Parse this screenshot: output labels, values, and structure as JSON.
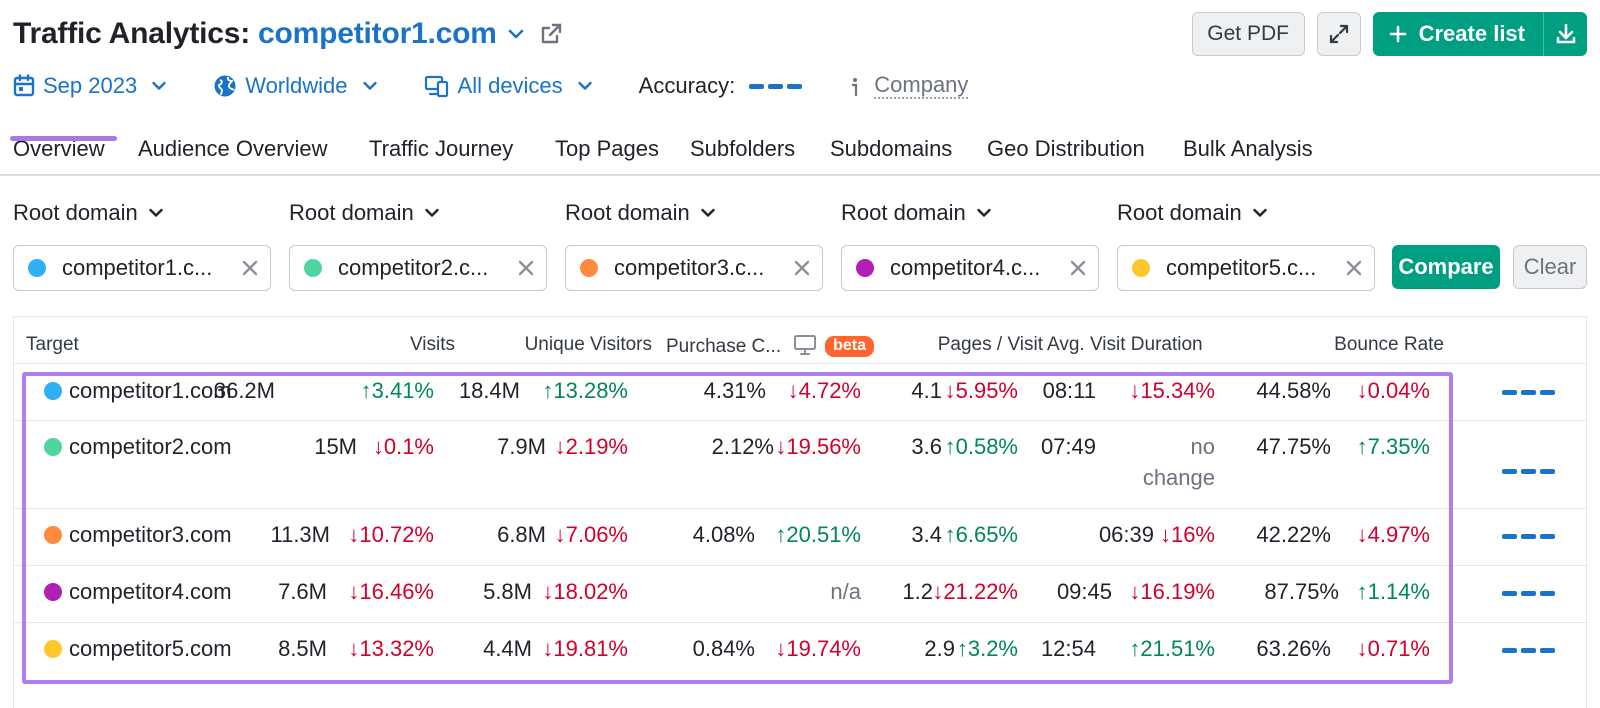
{
  "header": {
    "title": "Traffic Analytics:",
    "domain": "competitor1.com",
    "chevron_icon": "chevron-down-icon",
    "external_icon": "external-link-icon"
  },
  "actions": {
    "pdf_label": "Get PDF",
    "create_label": "Create list"
  },
  "filters": {
    "date": "Sep 2023",
    "region": "Worldwide",
    "devices": "All devices",
    "accuracy_label": "Accuracy:",
    "company_label": "Company"
  },
  "tabs": [
    "Overview",
    "Audience Overview",
    "Traffic Journey",
    "Top Pages",
    "Subfolders",
    "Subdomains",
    "Geo Distribution",
    "Bulk Analysis"
  ],
  "root_label": "Root domain",
  "domains": [
    {
      "text": "competitor1.c...",
      "color": "#2eb0f5"
    },
    {
      "text": "competitor2.c...",
      "color": "#4fd6a0"
    },
    {
      "text": "competitor3.c...",
      "color": "#ff8c3e"
    },
    {
      "text": "competitor4.c...",
      "color": "#b21fb6"
    },
    {
      "text": "competitor5.c...",
      "color": "#ffc72c"
    }
  ],
  "compare_label": "Compare",
  "clear_label": "Clear",
  "columns": {
    "target": "Target",
    "visits": "Visits",
    "unique": "Unique Visitors",
    "purchase": "Purchase C...",
    "beta": "beta",
    "pages": "Pages / Visit",
    "duration": "Avg. Visit Duration",
    "bounce": "Bounce Rate"
  },
  "rows": [
    {
      "name": "competitor1.com",
      "visits": "36.2M",
      "visits_d": "3.41%",
      "unique": "18.4M",
      "unique_d": "13.28%",
      "purchase": "4.31%",
      "purchase_d": "4.72%",
      "pages": "4.1",
      "pages_d": "5.95%",
      "dur": "08:11",
      "dur_d": "15.34%",
      "bounce": "44.58%",
      "bounce_d": "0.04%"
    },
    {
      "name": "competitor2.com",
      "visits": "15M",
      "visits_d": "0.1%",
      "unique": "7.9M",
      "unique_d": "2.19%",
      "purchase": "2.12%",
      "purchase_d": "19.56%",
      "pages": "3.6",
      "pages_d": "0.58%",
      "dur": "07:49",
      "dur_d1": "no",
      "dur_d2": "change",
      "bounce": "47.75%",
      "bounce_d": "7.35%"
    },
    {
      "name": "competitor3.com",
      "visits": "11.3M",
      "visits_d": "10.72%",
      "unique": "6.8M",
      "unique_d": "7.06%",
      "purchase": "4.08%",
      "purchase_d": "20.51%",
      "pages": "3.4",
      "pages_d": "6.65%",
      "dur": "06:39",
      "dur_d": "16%",
      "bounce": "42.22%",
      "bounce_d": "4.97%"
    },
    {
      "name": "competitor4.com",
      "visits": "7.6M",
      "visits_d": "16.46%",
      "unique": "5.8M",
      "unique_d": "18.02%",
      "purchase_na": "n/a",
      "pages": "1.2",
      "pages_d": "21.22%",
      "dur": "09:45",
      "dur_d": "16.19%",
      "bounce": "87.75%",
      "bounce_d": "1.14%"
    },
    {
      "name": "competitor5.com",
      "visits": "8.5M",
      "visits_d": "13.32%",
      "unique": "4.4M",
      "unique_d": "19.81%",
      "purchase": "0.84%",
      "purchase_d": "19.74%",
      "pages": "2.9",
      "pages_d": "3.2%",
      "dur": "12:54",
      "dur_d": "21.51%",
      "bounce": "63.26%",
      "bounce_d": "0.71%"
    }
  ],
  "colors": {
    "accent_blue": "#1a73c9",
    "brand_green": "#009f81",
    "up_green": "#00855e",
    "down_red": "#d1002c",
    "highlight_purple": "#b17ef0",
    "beta_orange": "#ff642d"
  }
}
